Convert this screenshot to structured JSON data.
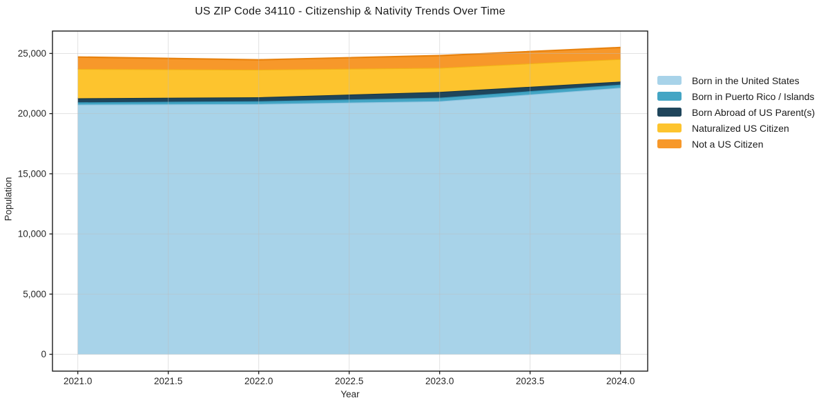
{
  "chart_data": {
    "type": "area",
    "stacked": true,
    "title": "US ZIP Code 34110 - Citizenship & Nativity Trends Over Time",
    "xlabel": "Year",
    "ylabel": "Population",
    "x": [
      2021,
      2022,
      2023,
      2024
    ],
    "series": [
      {
        "name": "Born in the United States",
        "color": "#a8d3e9",
        "edge_color": "#8fc3e0",
        "values": [
          20750,
          20800,
          21030,
          22150
        ]
      },
      {
        "name": "Born in Puerto Rico / Islands",
        "color": "#43a5c4",
        "edge_color": "#3191b3",
        "values": [
          190,
          230,
          290,
          260
        ]
      },
      {
        "name": "Born Abroad of US Parent(s)",
        "color": "#1f455b",
        "edge_color": "#173748",
        "values": [
          330,
          330,
          480,
          250
        ]
      },
      {
        "name": "Naturalized US Citizen",
        "color": "#fdc42e",
        "edge_color": "#f2b317",
        "values": [
          2440,
          2290,
          2000,
          1870
        ]
      },
      {
        "name": "Not a US Citizen",
        "color": "#f7982a",
        "edge_color": "#e8820e",
        "values": [
          990,
          820,
          1020,
          960
        ]
      }
    ],
    "xlim": [
      2020.86,
      2024.15
    ],
    "ylim": [
      -1400,
      26860
    ],
    "xticks": {
      "values": [
        2021.0,
        2021.5,
        2022.0,
        2022.5,
        2023.0,
        2023.5,
        2024.0
      ],
      "labels": [
        "2021.0",
        "2021.5",
        "2022.0",
        "2022.5",
        "2023.0",
        "2023.5",
        "2024.0"
      ]
    },
    "yticks": {
      "values": [
        0,
        5000,
        10000,
        15000,
        20000,
        25000
      ],
      "labels": [
        "0",
        "5,000",
        "10,000",
        "15,000",
        "20,000",
        "25,000"
      ]
    },
    "grid": true,
    "legend_position": "right",
    "spine_color": "#1a1a1a",
    "grid_color": "rgba(188,188,188,0.45)"
  }
}
